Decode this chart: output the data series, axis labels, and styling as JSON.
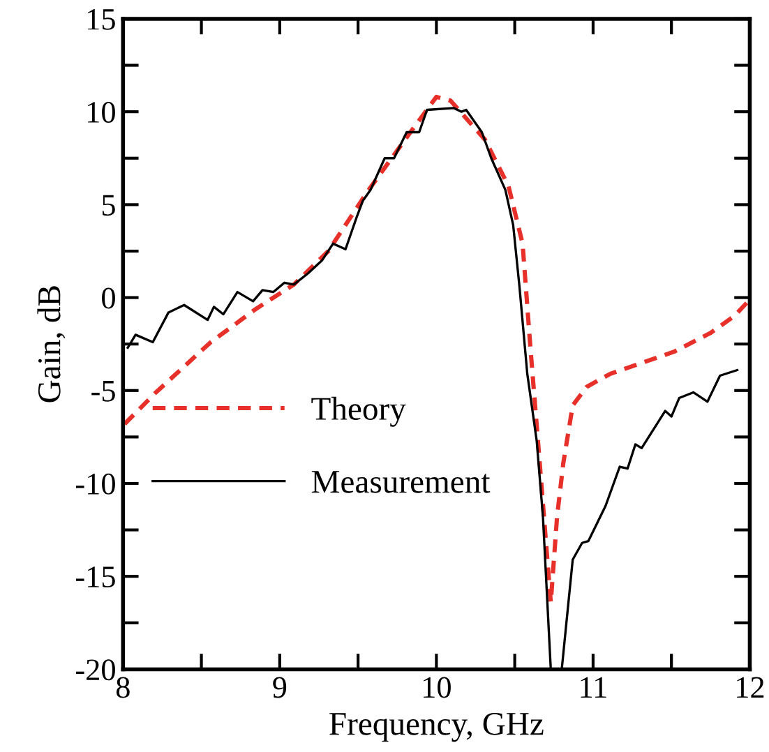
{
  "chart_data": {
    "type": "line",
    "xlabel": "Frequency, GHz",
    "ylabel": "Gain, dB",
    "xlim": [
      8,
      12
    ],
    "ylim": [
      -20,
      15
    ],
    "xticks": [
      8,
      {
        "value": 8.5,
        "label": null
      },
      9,
      {
        "value": 9.5,
        "label": null
      },
      10,
      {
        "value": 10.5,
        "label": null
      },
      11,
      {
        "value": 11.5,
        "label": null
      },
      12
    ],
    "yticks": [
      -20,
      {
        "value": -17.5,
        "label": null
      },
      -15,
      {
        "value": -12.5,
        "label": null
      },
      -10,
      {
        "value": -7.5,
        "label": null
      },
      -5,
      {
        "value": -2.5,
        "label": null
      },
      0,
      {
        "value": 2.5,
        "label": null
      },
      5,
      {
        "value": 7.5,
        "label": null
      },
      10,
      {
        "value": 12.5,
        "label": null
      },
      15
    ],
    "grid": false,
    "legend": "left",
    "marker": "none",
    "series": [
      {
        "name": "Theory",
        "color": "#e8302a",
        "line_style": "dashed",
        "x": [
          8.01,
          8.21,
          8.56,
          8.85,
          9.09,
          9.31,
          9.56,
          9.8,
          10.0,
          10.09,
          10.31,
          10.46,
          10.55,
          10.6,
          10.65,
          10.71,
          10.73,
          10.77,
          10.81,
          10.87,
          10.96,
          11.11,
          11.35,
          11.52,
          11.75,
          11.9,
          11.99
        ],
        "values": [
          -6.8,
          -5.1,
          -2.4,
          -0.6,
          0.7,
          2.5,
          5.7,
          8.5,
          10.8,
          10.6,
          8.5,
          6.0,
          2.9,
          -2.7,
          -7.9,
          -14.3,
          -16.4,
          -11.8,
          -8.9,
          -5.8,
          -4.8,
          -4.1,
          -3.4,
          -2.9,
          -1.9,
          -1.0,
          -0.2
        ]
      },
      {
        "name": "Measurement",
        "color": "#000000",
        "line_style": "solid",
        "x": [
          8.03,
          8.08,
          8.19,
          8.29,
          8.39,
          8.54,
          8.58,
          8.64,
          8.73,
          8.83,
          8.89,
          8.96,
          9.03,
          9.09,
          9.18,
          9.27,
          9.34,
          9.42,
          9.49,
          9.53,
          9.58,
          9.67,
          9.73,
          9.81,
          9.89,
          9.94,
          10.11,
          10.16,
          10.19,
          10.29,
          10.35,
          10.44,
          10.49,
          10.53,
          10.58,
          10.64,
          10.68,
          10.73,
          10.8,
          10.87,
          10.93,
          10.97,
          11.08,
          11.17,
          11.22,
          11.27,
          11.31,
          11.46,
          11.5,
          11.55,
          11.64,
          11.73,
          11.81,
          11.92
        ],
        "values": [
          -2.7,
          -2.0,
          -2.4,
          -0.8,
          -0.4,
          -1.2,
          -0.5,
          -0.9,
          0.3,
          -0.2,
          0.4,
          0.3,
          0.8,
          0.7,
          1.3,
          2.0,
          2.9,
          2.6,
          4.3,
          5.2,
          5.8,
          7.5,
          7.5,
          8.9,
          8.9,
          10.1,
          10.2,
          10.0,
          10.1,
          8.9,
          7.5,
          5.8,
          3.9,
          0.6,
          -4.1,
          -7.7,
          -11.8,
          -20,
          -20,
          -14.1,
          -13.2,
          -13.1,
          -11.2,
          -9.1,
          -9.2,
          -7.9,
          -8.1,
          -6.1,
          -6.4,
          -5.4,
          -5.1,
          -5.6,
          -4.2,
          -3.9
        ]
      }
    ]
  }
}
